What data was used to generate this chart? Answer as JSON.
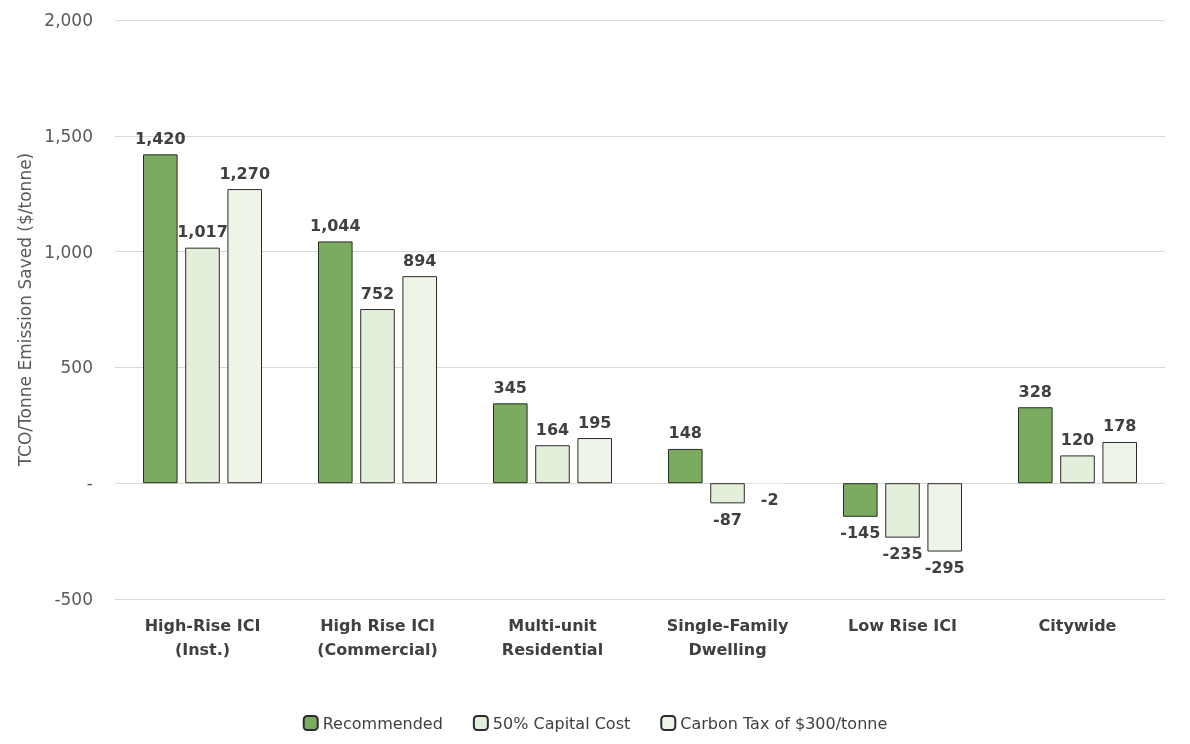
{
  "chart_data": {
    "type": "bar",
    "ylabel": "TCO/Tonne Emission Saved ($/tonne)",
    "categories": [
      "High-Rise ICI\n(Inst.)",
      "High Rise ICI\n(Commercial)",
      "Multi-unit\nResidential",
      "Single-Family\nDwelling",
      "Low Rise ICI",
      "Citywide"
    ],
    "series": [
      {
        "name": "Recommended",
        "color": "#7aab5e",
        "values": [
          1420,
          1044,
          345,
          148,
          -145,
          328
        ],
        "value_labels": [
          "1,420",
          "1,044",
          "345",
          "148",
          "-145",
          "328"
        ]
      },
      {
        "name": "50% Capital Cost",
        "color": "#e3efdb",
        "values": [
          1017,
          752,
          164,
          -87,
          -235,
          120
        ],
        "value_labels": [
          "1,017",
          "752",
          "164",
          "-87",
          "-235",
          "120"
        ]
      },
      {
        "name": "Carbon Tax of $300/tonne",
        "color": "#eef5e8",
        "values": [
          1270,
          894,
          195,
          -2,
          -295,
          178
        ],
        "value_labels": [
          "1,270",
          "894",
          "195",
          "-2",
          "-295",
          "178"
        ]
      }
    ],
    "ylim": [
      -500,
      2000
    ],
    "yticks": [
      {
        "value": -500,
        "label": "-500"
      },
      {
        "value": 0,
        "label": "-"
      },
      {
        "value": 500,
        "label": "500"
      },
      {
        "value": 1000,
        "label": "1,000"
      },
      {
        "value": 1500,
        "label": "1,500"
      },
      {
        "value": 2000,
        "label": "2,000"
      }
    ],
    "grid": "y",
    "legend": "bottom"
  }
}
